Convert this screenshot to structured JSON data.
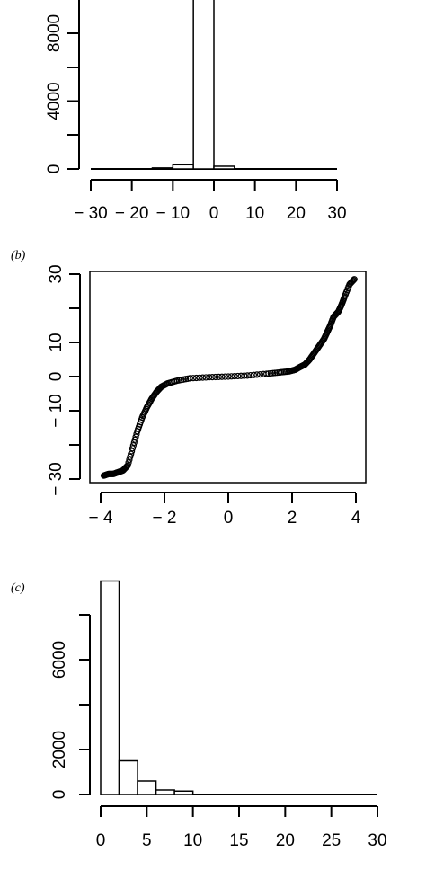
{
  "panels": [
    {
      "label": ""
    },
    {
      "label": "(b)"
    },
    {
      "label": "(c)"
    }
  ],
  "chart_data": [
    {
      "type": "bar",
      "title": "",
      "xlabel": "",
      "ylabel": "",
      "x_ticks": [
        "− 30",
        "− 20",
        "− 10",
        "0",
        "10",
        "20",
        "30"
      ],
      "y_ticks": [
        "0",
        "4000",
        "8000"
      ],
      "bins": [
        {
          "start": -15,
          "end": -10,
          "value": 60
        },
        {
          "start": -10,
          "end": -5,
          "value": 250
        },
        {
          "start": -5,
          "end": 0,
          "value": 10500
        },
        {
          "start": 0,
          "end": 5,
          "value": 160
        }
      ],
      "xlim": [
        -30,
        30
      ],
      "ylim": [
        0,
        10500
      ]
    },
    {
      "type": "scatter",
      "title": "",
      "xlabel": "",
      "ylabel": "",
      "x_ticks": [
        "− 4",
        "− 2",
        "0",
        "2",
        "4"
      ],
      "y_ticks": [
        "− 30",
        "− 10",
        "0",
        "10",
        "30"
      ],
      "x": [
        -3.9,
        -3.75,
        -3.6,
        -3.45,
        -3.3,
        -3.15,
        -3.0,
        -2.85,
        -2.7,
        -2.55,
        -2.4,
        -2.25,
        -2.1,
        -1.9,
        -1.6,
        -1.2,
        -0.6,
        0.0,
        0.6,
        1.2,
        1.6,
        1.9,
        2.1,
        2.25,
        2.4,
        2.55,
        2.7,
        2.85,
        3.0,
        3.1,
        3.2,
        3.3,
        3.45,
        3.55,
        3.65,
        3.8,
        3.95
      ],
      "y": [
        -29,
        -28.5,
        -28.5,
        -28,
        -27.5,
        -26,
        -21,
        -16,
        -12,
        -9,
        -6.5,
        -4.5,
        -3,
        -2,
        -1.2,
        -0.5,
        -0.2,
        0.0,
        0.3,
        0.8,
        1.2,
        1.5,
        2.0,
        2.8,
        3.5,
        5,
        7,
        9,
        11,
        13,
        15,
        17.5,
        19,
        21,
        23.5,
        27,
        28.5
      ],
      "xlim": [
        -4.2,
        4.2
      ],
      "ylim": [
        -31,
        31
      ]
    },
    {
      "type": "bar",
      "title": "",
      "xlabel": "",
      "ylabel": "",
      "x_ticks": [
        "0",
        "5",
        "10",
        "15",
        "20",
        "25",
        "30"
      ],
      "y_ticks": [
        "0",
        "2000",
        "6000"
      ],
      "bins": [
        {
          "start": 0,
          "end": 2,
          "value": 9500
        },
        {
          "start": 2,
          "end": 4,
          "value": 1500
        },
        {
          "start": 4,
          "end": 6,
          "value": 600
        },
        {
          "start": 6,
          "end": 8,
          "value": 200
        },
        {
          "start": 8,
          "end": 10,
          "value": 150
        }
      ],
      "xlim": [
        0,
        30
      ],
      "ylim": [
        0,
        9500
      ]
    }
  ]
}
